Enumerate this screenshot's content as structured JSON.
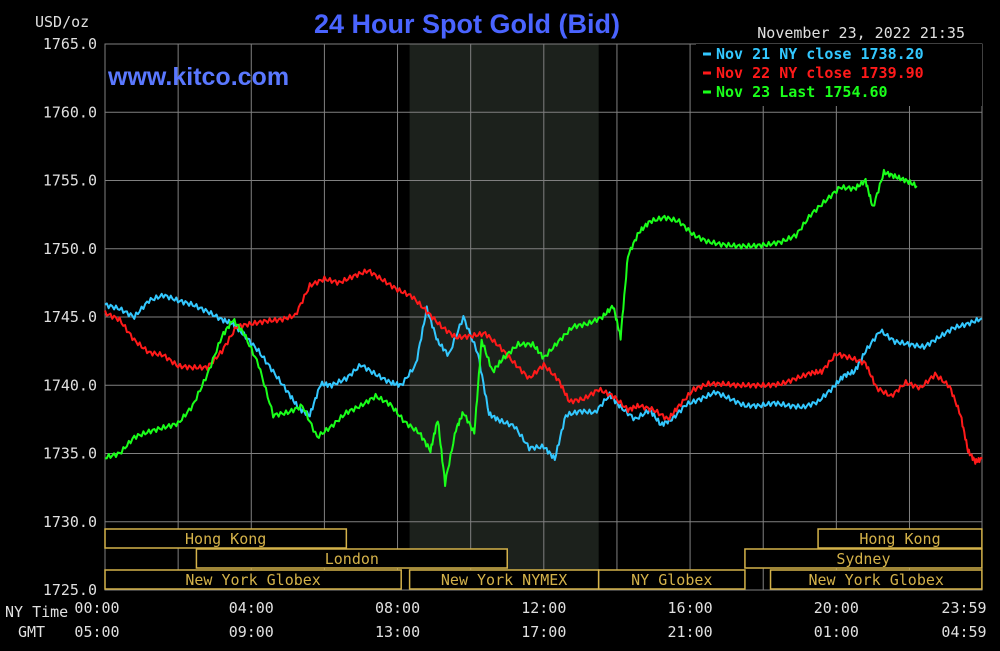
{
  "chart_data": {
    "type": "line",
    "title": "24 Hour Spot Gold (Bid)",
    "unit_label": "USD/oz",
    "watermark": "www.kitco.com",
    "timestamp": "November 23, 2022 21:35",
    "ylim": [
      1725.0,
      1765.0
    ],
    "y_ticks": [
      "1765.0",
      "1760.0",
      "1755.0",
      "1750.0",
      "1745.0",
      "1740.0",
      "1735.0",
      "1730.0",
      "1725.0"
    ],
    "y_tick_values": [
      1765,
      1760,
      1755,
      1750,
      1745,
      1740,
      1735,
      1730,
      1725
    ],
    "x_ticks_ny": [
      "00:00",
      "04:00",
      "08:00",
      "12:00",
      "16:00",
      "20:00",
      "23:59"
    ],
    "x_ticks_gmt": [
      "05:00",
      "09:00",
      "13:00",
      "17:00",
      "21:00",
      "01:00",
      "04:59"
    ],
    "x_tick_hours": [
      0,
      4,
      8,
      12,
      16,
      20,
      23.983
    ],
    "x_axis_labels": {
      "ny": "NY Time",
      "gmt": "GMT"
    },
    "legend_placement": "top-right",
    "grid": true,
    "shaded_session_hours": [
      8.33,
      13.5
    ],
    "series": [
      {
        "name": "Nov 21 NY close 1738.20",
        "color": "#33c8ff",
        "points": [
          [
            0,
            1745.9
          ],
          [
            0.4,
            1745.6
          ],
          [
            0.8,
            1745.0
          ],
          [
            1.2,
            1746.2
          ],
          [
            1.6,
            1746.6
          ],
          [
            2.0,
            1746.2
          ],
          [
            2.4,
            1745.9
          ],
          [
            2.8,
            1745.4
          ],
          [
            3.2,
            1744.8
          ],
          [
            3.5,
            1744.5
          ],
          [
            3.8,
            1743.7
          ],
          [
            4.2,
            1742.5
          ],
          [
            4.6,
            1741.0
          ],
          [
            5.0,
            1739.5
          ],
          [
            5.3,
            1738.3
          ],
          [
            5.6,
            1737.8
          ],
          [
            5.9,
            1740.1
          ],
          [
            6.2,
            1740.0
          ],
          [
            6.6,
            1740.5
          ],
          [
            7.0,
            1741.5
          ],
          [
            7.4,
            1740.8
          ],
          [
            7.8,
            1740.2
          ],
          [
            8.1,
            1740.0
          ],
          [
            8.5,
            1741.5
          ],
          [
            8.8,
            1745.6
          ],
          [
            9.1,
            1743.2
          ],
          [
            9.4,
            1742.2
          ],
          [
            9.8,
            1745.0
          ],
          [
            10.2,
            1742.3
          ],
          [
            10.5,
            1737.9
          ],
          [
            10.8,
            1737.4
          ],
          [
            11.2,
            1737.0
          ],
          [
            11.6,
            1735.4
          ],
          [
            12.0,
            1735.5
          ],
          [
            12.3,
            1734.6
          ],
          [
            12.6,
            1737.8
          ],
          [
            13.0,
            1738.1
          ],
          [
            13.4,
            1738.0
          ],
          [
            13.8,
            1739.3
          ],
          [
            14.1,
            1738.4
          ],
          [
            14.5,
            1737.5
          ],
          [
            14.9,
            1738.2
          ],
          [
            15.2,
            1737.1
          ],
          [
            15.5,
            1737.5
          ],
          [
            15.9,
            1738.6
          ],
          [
            16.3,
            1739.0
          ],
          [
            16.7,
            1739.5
          ],
          [
            17.1,
            1739.0
          ],
          [
            17.5,
            1738.5
          ],
          [
            17.9,
            1738.5
          ],
          [
            18.3,
            1738.7
          ],
          [
            18.7,
            1738.5
          ],
          [
            19.1,
            1738.4
          ],
          [
            19.5,
            1738.8
          ],
          [
            19.9,
            1739.8
          ],
          [
            20.2,
            1740.7
          ],
          [
            20.5,
            1741.0
          ],
          [
            20.8,
            1742.5
          ],
          [
            21.2,
            1744.0
          ],
          [
            21.6,
            1743.2
          ],
          [
            22.0,
            1743.0
          ],
          [
            22.4,
            1742.8
          ],
          [
            22.8,
            1743.5
          ],
          [
            23.2,
            1744.2
          ],
          [
            23.6,
            1744.5
          ],
          [
            23.98,
            1744.9
          ]
        ]
      },
      {
        "name": "Nov 22 NY close 1739.90",
        "color": "#ff1a1a",
        "points": [
          [
            0,
            1745.3
          ],
          [
            0.4,
            1744.8
          ],
          [
            0.8,
            1743.3
          ],
          [
            1.2,
            1742.4
          ],
          [
            1.6,
            1742.2
          ],
          [
            2.0,
            1741.4
          ],
          [
            2.4,
            1741.3
          ],
          [
            2.8,
            1741.3
          ],
          [
            3.2,
            1742.5
          ],
          [
            3.6,
            1744.3
          ],
          [
            4.0,
            1744.5
          ],
          [
            4.4,
            1744.7
          ],
          [
            4.8,
            1744.8
          ],
          [
            5.2,
            1745.1
          ],
          [
            5.6,
            1747.3
          ],
          [
            6.0,
            1747.8
          ],
          [
            6.4,
            1747.5
          ],
          [
            6.8,
            1748.0
          ],
          [
            7.2,
            1748.4
          ],
          [
            7.6,
            1747.7
          ],
          [
            8.0,
            1747.0
          ],
          [
            8.4,
            1746.5
          ],
          [
            8.8,
            1745.4
          ],
          [
            9.2,
            1744.3
          ],
          [
            9.6,
            1743.5
          ],
          [
            10.0,
            1743.6
          ],
          [
            10.4,
            1743.8
          ],
          [
            10.8,
            1742.8
          ],
          [
            11.2,
            1741.6
          ],
          [
            11.6,
            1740.5
          ],
          [
            12.0,
            1741.5
          ],
          [
            12.4,
            1740.4
          ],
          [
            12.7,
            1738.8
          ],
          [
            13.1,
            1739.0
          ],
          [
            13.5,
            1739.7
          ],
          [
            13.9,
            1739.2
          ],
          [
            14.3,
            1738.2
          ],
          [
            14.6,
            1738.5
          ],
          [
            15.0,
            1738.2
          ],
          [
            15.4,
            1737.5
          ],
          [
            15.7,
            1738.5
          ],
          [
            16.1,
            1739.7
          ],
          [
            16.5,
            1740.1
          ],
          [
            16.9,
            1740.1
          ],
          [
            17.3,
            1740.0
          ],
          [
            17.7,
            1740.0
          ],
          [
            18.1,
            1740.0
          ],
          [
            18.5,
            1740.1
          ],
          [
            18.9,
            1740.5
          ],
          [
            19.3,
            1740.9
          ],
          [
            19.6,
            1741.0
          ],
          [
            20.0,
            1742.3
          ],
          [
            20.4,
            1742.0
          ],
          [
            20.8,
            1741.6
          ],
          [
            21.1,
            1739.8
          ],
          [
            21.5,
            1739.2
          ],
          [
            21.9,
            1740.2
          ],
          [
            22.3,
            1739.8
          ],
          [
            22.7,
            1740.8
          ],
          [
            23.1,
            1739.9
          ],
          [
            23.4,
            1737.8
          ],
          [
            23.6,
            1735.2
          ],
          [
            23.8,
            1734.4
          ],
          [
            23.98,
            1734.6
          ]
        ]
      },
      {
        "name": "Nov 23 Last 1754.60",
        "color": "#1aff1a",
        "points": [
          [
            0,
            1734.7
          ],
          [
            0.4,
            1735.0
          ],
          [
            0.8,
            1736.2
          ],
          [
            1.2,
            1736.6
          ],
          [
            1.6,
            1736.9
          ],
          [
            2.0,
            1737.2
          ],
          [
            2.4,
            1738.5
          ],
          [
            2.8,
            1740.8
          ],
          [
            3.2,
            1743.6
          ],
          [
            3.5,
            1744.8
          ],
          [
            3.8,
            1743.8
          ],
          [
            4.2,
            1741.5
          ],
          [
            4.6,
            1737.8
          ],
          [
            5.0,
            1738.0
          ],
          [
            5.4,
            1738.5
          ],
          [
            5.8,
            1736.2
          ],
          [
            6.2,
            1737.0
          ],
          [
            6.6,
            1738.0
          ],
          [
            7.0,
            1738.5
          ],
          [
            7.4,
            1739.2
          ],
          [
            7.8,
            1738.6
          ],
          [
            8.2,
            1737.3
          ],
          [
            8.6,
            1736.5
          ],
          [
            8.9,
            1735.2
          ],
          [
            9.1,
            1737.5
          ],
          [
            9.3,
            1732.8
          ],
          [
            9.6,
            1736.8
          ],
          [
            9.8,
            1738.0
          ],
          [
            10.1,
            1736.5
          ],
          [
            10.3,
            1743.3
          ],
          [
            10.6,
            1741.0
          ],
          [
            10.9,
            1742.0
          ],
          [
            11.3,
            1743.0
          ],
          [
            11.7,
            1743.0
          ],
          [
            12.0,
            1742.0
          ],
          [
            12.4,
            1743.2
          ],
          [
            12.8,
            1744.3
          ],
          [
            13.2,
            1744.5
          ],
          [
            13.6,
            1745.0
          ],
          [
            13.9,
            1745.8
          ],
          [
            14.1,
            1743.5
          ],
          [
            14.3,
            1749.5
          ],
          [
            14.6,
            1751.2
          ],
          [
            14.9,
            1752.0
          ],
          [
            15.3,
            1752.3
          ],
          [
            15.7,
            1752.0
          ],
          [
            16.1,
            1751.0
          ],
          [
            16.5,
            1750.5
          ],
          [
            16.9,
            1750.3
          ],
          [
            17.3,
            1750.2
          ],
          [
            17.7,
            1750.2
          ],
          [
            18.1,
            1750.3
          ],
          [
            18.5,
            1750.5
          ],
          [
            18.9,
            1751.0
          ],
          [
            19.3,
            1752.5
          ],
          [
            19.7,
            1753.5
          ],
          [
            20.1,
            1754.5
          ],
          [
            20.5,
            1754.4
          ],
          [
            20.8,
            1755.0
          ],
          [
            21.0,
            1753.0
          ],
          [
            21.3,
            1755.6
          ],
          [
            21.6,
            1755.3
          ],
          [
            21.9,
            1755.0
          ],
          [
            22.2,
            1754.6
          ]
        ]
      }
    ],
    "market_sessions": [
      {
        "label": "Hong Kong",
        "row": 0,
        "start": 0.0,
        "end": 6.6
      },
      {
        "label": "London",
        "row": 1,
        "start": 2.5,
        "end": 11.0
      },
      {
        "label": "New York Globex",
        "row": 2,
        "start": 0.0,
        "end": 8.1
      },
      {
        "label": "New York NYMEX",
        "row": 2,
        "start": 8.33,
        "end": 13.5
      },
      {
        "label": "NY Globex",
        "row": 2,
        "start": 13.5,
        "end": 17.5
      },
      {
        "label": "Sydney",
        "row": 1,
        "start": 17.5,
        "end": 23.98
      },
      {
        "label": "Hong Kong",
        "row": 0,
        "start": 19.5,
        "end": 23.98
      },
      {
        "label": "New York Globex",
        "row": 2,
        "start": 18.2,
        "end": 23.98
      }
    ],
    "colors": {
      "background": "#000000",
      "grid": "#808080",
      "title": "#4a64ff",
      "watermark": "#5a78ff",
      "axis_text": "#e0e0e0",
      "session_text": "#d4b24a",
      "session_border": "#d4b24a",
      "shade": "#1c211c"
    }
  }
}
